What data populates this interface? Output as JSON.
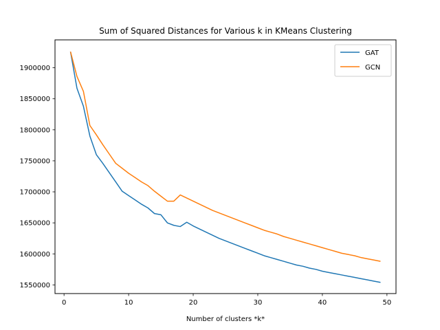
{
  "chart_data": {
    "type": "line",
    "title": "Sum of Squared Distances for Various k in KMeans Clustering",
    "xlabel": "Number of clusters *k*",
    "ylabel": "",
    "xlim": [
      -1.4,
      51.4
    ],
    "ylim": [
      1536000,
      1945000
    ],
    "xticks": [
      0,
      10,
      20,
      30,
      40,
      50
    ],
    "yticks": [
      1550000,
      1600000,
      1650000,
      1700000,
      1750000,
      1800000,
      1850000,
      1900000
    ],
    "grid": false,
    "legend": "top-right",
    "x": [
      1,
      2,
      3,
      4,
      5,
      6,
      7,
      8,
      9,
      10,
      11,
      12,
      13,
      14,
      15,
      16,
      17,
      18,
      19,
      20,
      21,
      22,
      23,
      24,
      25,
      26,
      27,
      28,
      29,
      30,
      31,
      32,
      33,
      34,
      35,
      36,
      37,
      38,
      39,
      40,
      41,
      42,
      43,
      44,
      45,
      46,
      47,
      48,
      49
    ],
    "series": [
      {
        "name": "GAT",
        "color": "#1f77b4",
        "values": [
          1926000,
          1867000,
          1838000,
          1790000,
          1760000,
          1746000,
          1731000,
          1716000,
          1701000,
          1694000,
          1687000,
          1680000,
          1674000,
          1665000,
          1663000,
          1650000,
          1646000,
          1644000,
          1651000,
          1645000,
          1640000,
          1635000,
          1630000,
          1625000,
          1621000,
          1617000,
          1613000,
          1609000,
          1605000,
          1601000,
          1597000,
          1594000,
          1591000,
          1588000,
          1585000,
          1582000,
          1580000,
          1577000,
          1575000,
          1572000,
          1570000,
          1568000,
          1566000,
          1564000,
          1562000,
          1560000,
          1558000,
          1556000,
          1554000
        ]
      },
      {
        "name": "GCN",
        "color": "#ff7f0e",
        "values": [
          1926000,
          1886000,
          1862000,
          1807000,
          1792000,
          1776000,
          1761000,
          1746000,
          1738000,
          1730000,
          1723000,
          1716000,
          1710000,
          1701000,
          1693000,
          1685000,
          1685000,
          1695000,
          1690000,
          1685000,
          1680000,
          1675000,
          1670000,
          1666000,
          1662000,
          1658000,
          1654000,
          1650000,
          1646000,
          1642000,
          1638000,
          1635000,
          1632000,
          1628000,
          1625000,
          1622000,
          1619000,
          1616000,
          1613000,
          1610000,
          1607000,
          1604000,
          1601000,
          1599000,
          1597000,
          1594000,
          1592000,
          1590000,
          1588000
        ]
      }
    ]
  }
}
